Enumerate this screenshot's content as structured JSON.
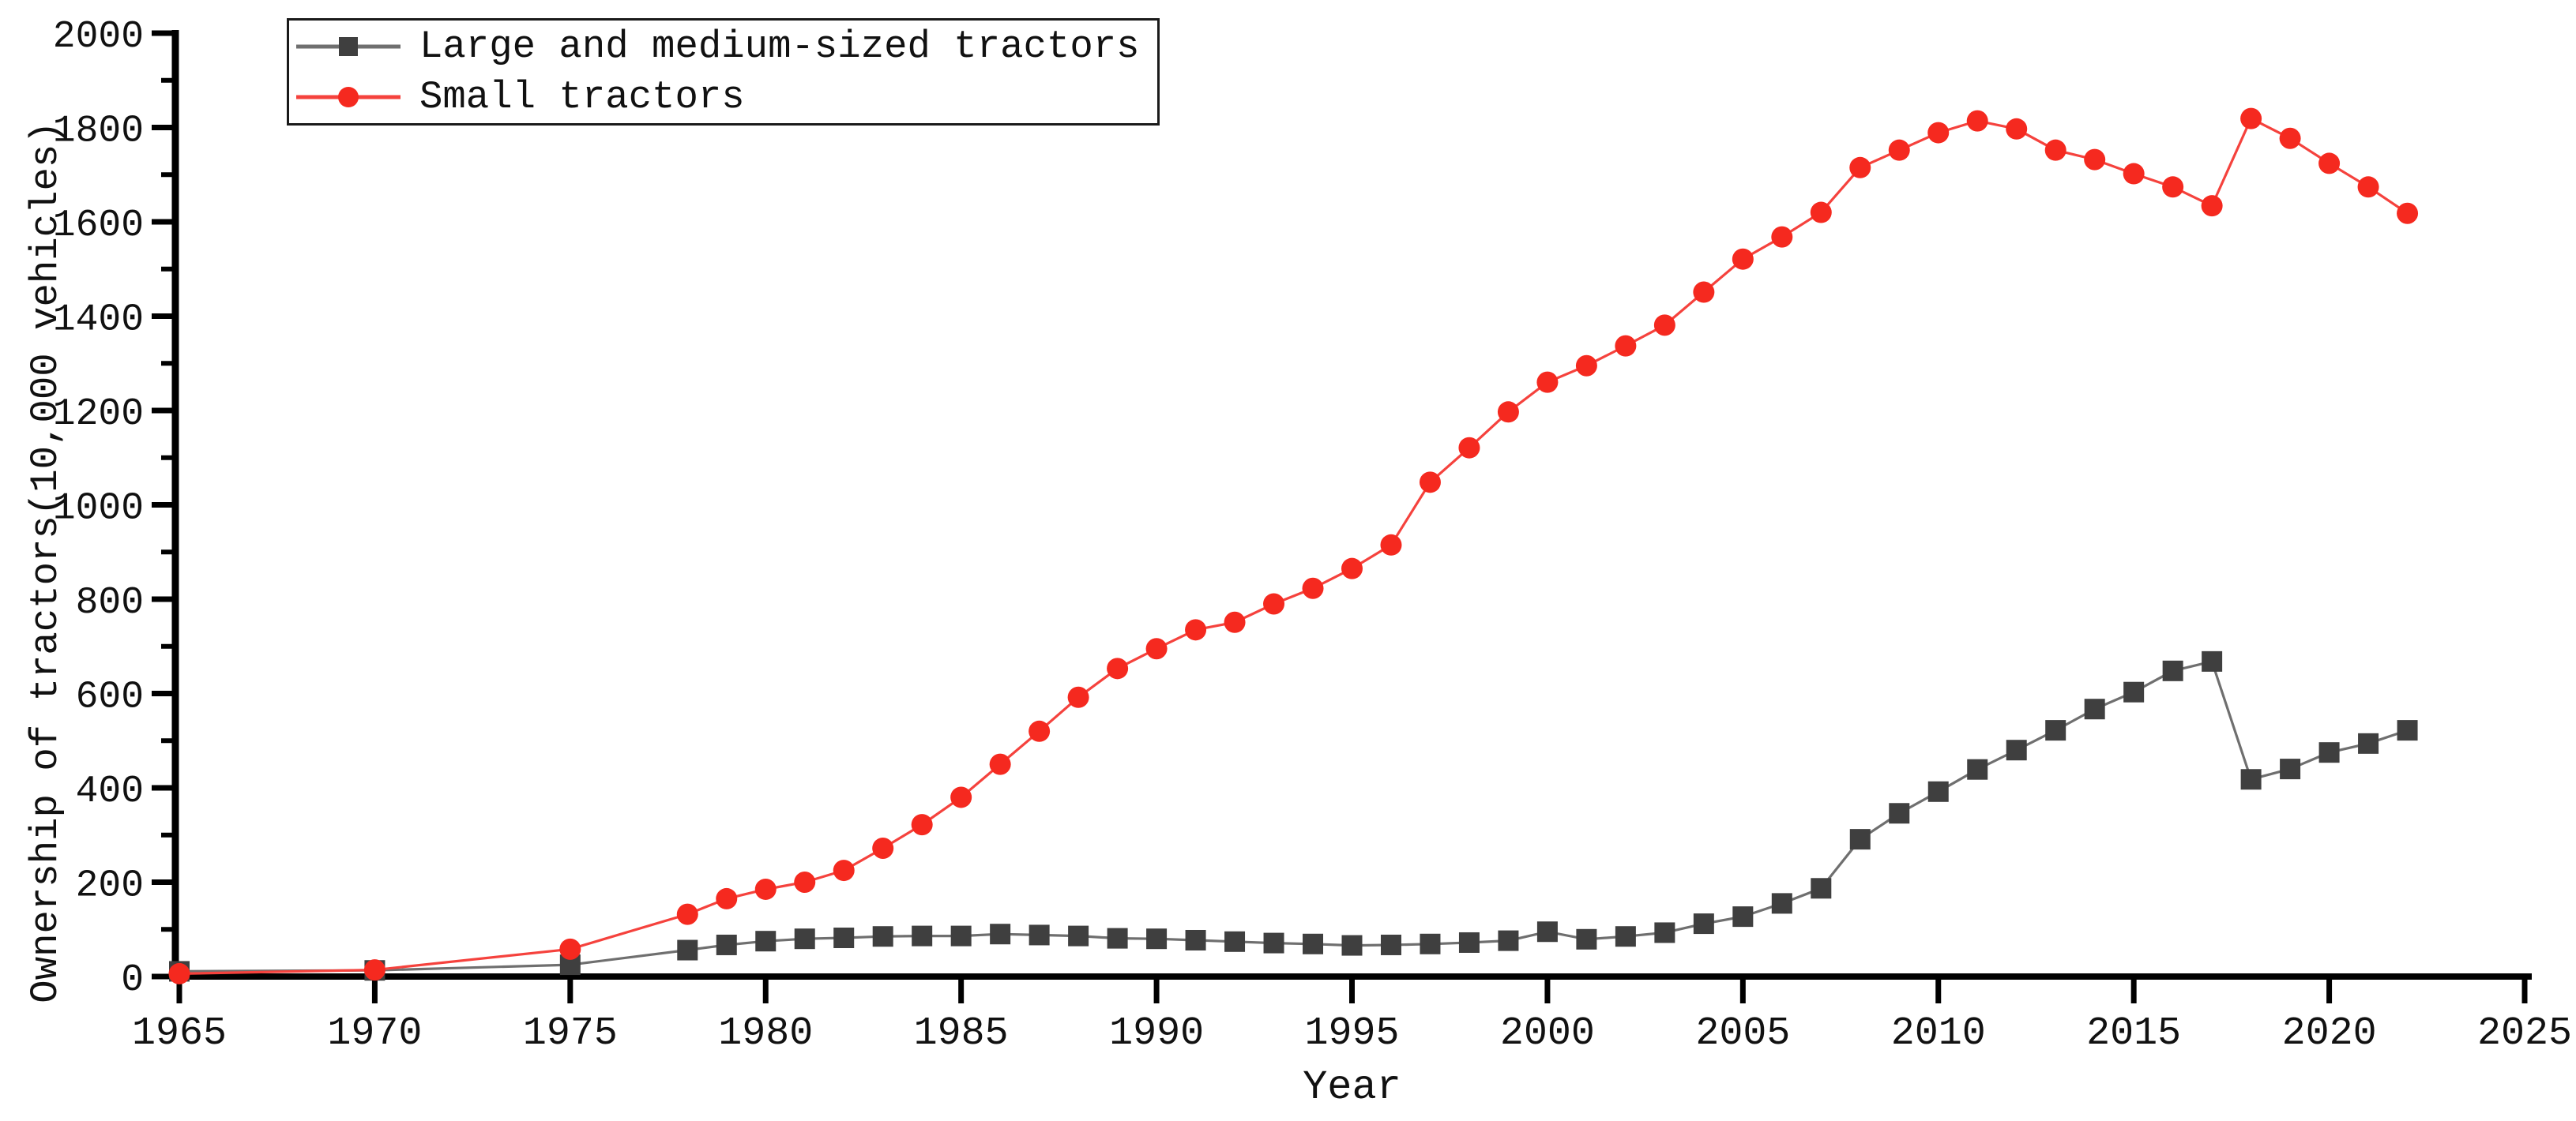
{
  "chart_data": {
    "type": "line",
    "xlabel": "Year",
    "ylabel": "Ownership of tractors(10,000 vehicles)",
    "xlim": [
      1965,
      2025
    ],
    "ylim": [
      0,
      2000
    ],
    "x_ticks": [
      1965,
      1970,
      1975,
      1980,
      1985,
      1990,
      1995,
      2000,
      2005,
      2010,
      2015,
      2020,
      2025
    ],
    "y_ticks": [
      0,
      200,
      400,
      600,
      800,
      1000,
      1200,
      1400,
      1600,
      1800,
      2000
    ],
    "y_minor_ticks": [
      100,
      300,
      500,
      700,
      900,
      1100,
      1300,
      1500,
      1700,
      1900
    ],
    "grid": false,
    "legend_position": "top-left",
    "axis_color": "#000000",
    "text_color": "#111111",
    "x": [
      1965,
      1970,
      1975,
      1978,
      1979,
      1980,
      1981,
      1982,
      1983,
      1984,
      1985,
      1986,
      1987,
      1988,
      1989,
      1990,
      1991,
      1992,
      1993,
      1994,
      1995,
      1996,
      1997,
      1998,
      1999,
      2000,
      2001,
      2002,
      2003,
      2004,
      2005,
      2006,
      2007,
      2008,
      2009,
      2010,
      2011,
      2012,
      2013,
      2014,
      2015,
      2016,
      2017,
      2018,
      2019,
      2020,
      2021,
      2022
    ],
    "series": [
      {
        "name": "Large and medium-sized tractors",
        "marker": "square",
        "marker_color": "#3f3f3f",
        "line_color": "#6f6f6f",
        "values": [
          11,
          13,
          25,
          56,
          67,
          75,
          80,
          82,
          85,
          86,
          86,
          90,
          88,
          86,
          81,
          80,
          77,
          74,
          71,
          69,
          66,
          67,
          69,
          72,
          76,
          95,
          79,
          85,
          93,
          112,
          127,
          155,
          187,
          291,
          346,
          392,
          439,
          480,
          522,
          567,
          603,
          648,
          668,
          418,
          440,
          475,
          494,
          522
        ]
      },
      {
        "name": "Small tractors",
        "marker": "circle",
        "marker_color": "#f5291f",
        "line_color": "#f5423d",
        "values": [
          6,
          14,
          58,
          132,
          165,
          185,
          200,
          225,
          272,
          322,
          380,
          450,
          520,
          592,
          653,
          695,
          735,
          751,
          790,
          823,
          865,
          915,
          1048,
          1121,
          1197,
          1260,
          1295,
          1337,
          1381,
          1451,
          1521,
          1568,
          1620,
          1715,
          1752,
          1789,
          1814,
          1797,
          1752,
          1732,
          1702,
          1674,
          1634,
          1819,
          1777,
          1724,
          1674,
          1618
        ]
      }
    ]
  }
}
